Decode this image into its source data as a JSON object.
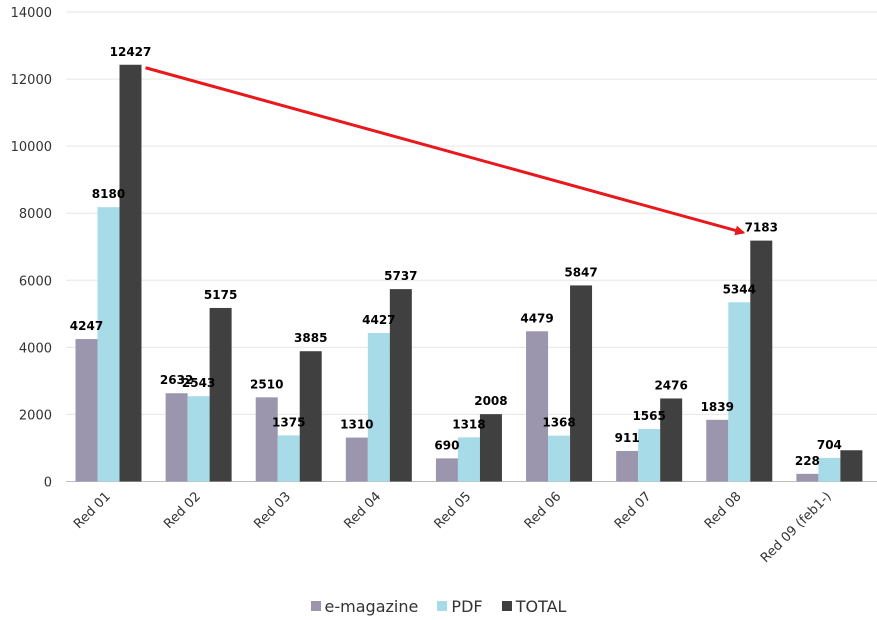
{
  "chart_data": {
    "type": "bar",
    "categories": [
      "Red 01",
      "Red 02",
      "Red 03",
      "Red 04",
      "Red 05",
      "Red 06",
      "Red 07",
      "Red 08",
      "Red 09 (feb1-)"
    ],
    "series": [
      {
        "name": "e-magazine",
        "color": "#9b95ad",
        "values": [
          4247,
          2632,
          2510,
          1310,
          690,
          4479,
          911,
          1839,
          228
        ]
      },
      {
        "name": "PDF",
        "color": "#a8dbe8",
        "values": [
          8180,
          2543,
          1375,
          4427,
          1318,
          1368,
          1565,
          5344,
          704
        ]
      },
      {
        "name": "TOTAL",
        "color": "#404040",
        "values": [
          12427,
          5175,
          3885,
          5737,
          2008,
          5847,
          2476,
          7183,
          932
        ]
      }
    ],
    "data_labels": [
      [
        "4247",
        "2632",
        "2510",
        "1310",
        "690",
        "4479",
        "911",
        "1839",
        "228"
      ],
      [
        "8180",
        "2543",
        "1375",
        "4427",
        "1318",
        "1368",
        "1565",
        "5344",
        "704"
      ],
      [
        "12427",
        "5175",
        "3885",
        "5737",
        "2008",
        "5847",
        "2476",
        "7183",
        ""
      ]
    ],
    "yticks": [
      "0",
      "2000",
      "4000",
      "6000",
      "8000",
      "10000",
      "12000",
      "14000"
    ],
    "ylim": [
      0,
      14000
    ],
    "grid": true,
    "legend_position": "bottom",
    "annotation": {
      "type": "arrow",
      "color": "#e8181c",
      "from": {
        "category": "Red 01",
        "value": 12427
      },
      "to": {
        "category": "Red 08",
        "value": 7183
      }
    }
  }
}
